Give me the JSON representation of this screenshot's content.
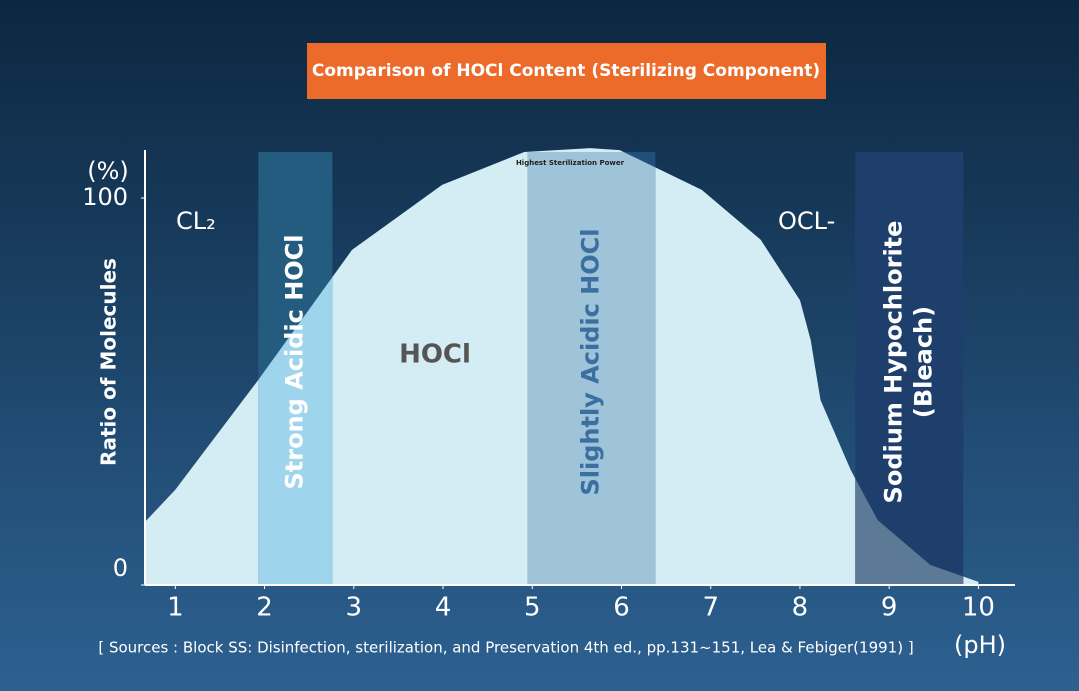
{
  "chart_data": {
    "type": "area",
    "title": "Comparison of HOCl Content (Sterilizing Component)",
    "y_unit": "(%)",
    "y_label": "Ratio of Molecules",
    "x_unit": "(pH)",
    "source": "[ Sources : Block SS: Disinfection, sterilization, and Preservation 4th ed., pp.131~151, Lea & Febiger(1991) ]",
    "annotations": {
      "cl2": "CL₂",
      "hocl": "HOCl",
      "ocl": "OCL-",
      "peak": "Highest Sterilization Power"
    },
    "x": [
      0.66,
      1,
      1.93,
      2.98,
      3.99,
      4.91,
      5.65,
      5.98,
      6.9,
      7.56,
      8.0,
      8.12,
      8.23,
      8.57,
      8.87,
      9.46,
      10
    ],
    "series": [
      {
        "name": "HOCl",
        "color": "#d4ecf4",
        "values": [
          16.3,
          24.6,
          53,
          86.6,
          103.4,
          111.9,
          112.9,
          112.4,
          102.1,
          89.2,
          73.6,
          63.3,
          47.8,
          29.7,
          16.8,
          5.2,
          0.8
        ]
      }
    ],
    "bands": [
      {
        "label": "Strong Acidic HOCl",
        "range": [
          1.93,
          2.76
        ],
        "color": "#245c80",
        "inner_color": "#9fd5ec",
        "text_color": "#ffffff"
      },
      {
        "label": "Slightly Acidic HOCl",
        "range": [
          4.95,
          6.38
        ],
        "color": "#1f4f7a",
        "inner_color": "#9fc3d8",
        "text_color": "#3a6fa0"
      },
      {
        "label": "Sodium Hypochlorite\n(Bleach)",
        "range": [
          8.62,
          9.83
        ],
        "color": "#1e3f6b",
        "inner_color": "#5c7a96",
        "text_color": "#ffffff"
      }
    ],
    "xlim": [
      0.66,
      10.41
    ],
    "ylim": [
      0,
      115
    ],
    "xticks": [
      1,
      2,
      3,
      4,
      5,
      6,
      7,
      8,
      9,
      10
    ],
    "yticks": [
      0,
      100
    ]
  }
}
